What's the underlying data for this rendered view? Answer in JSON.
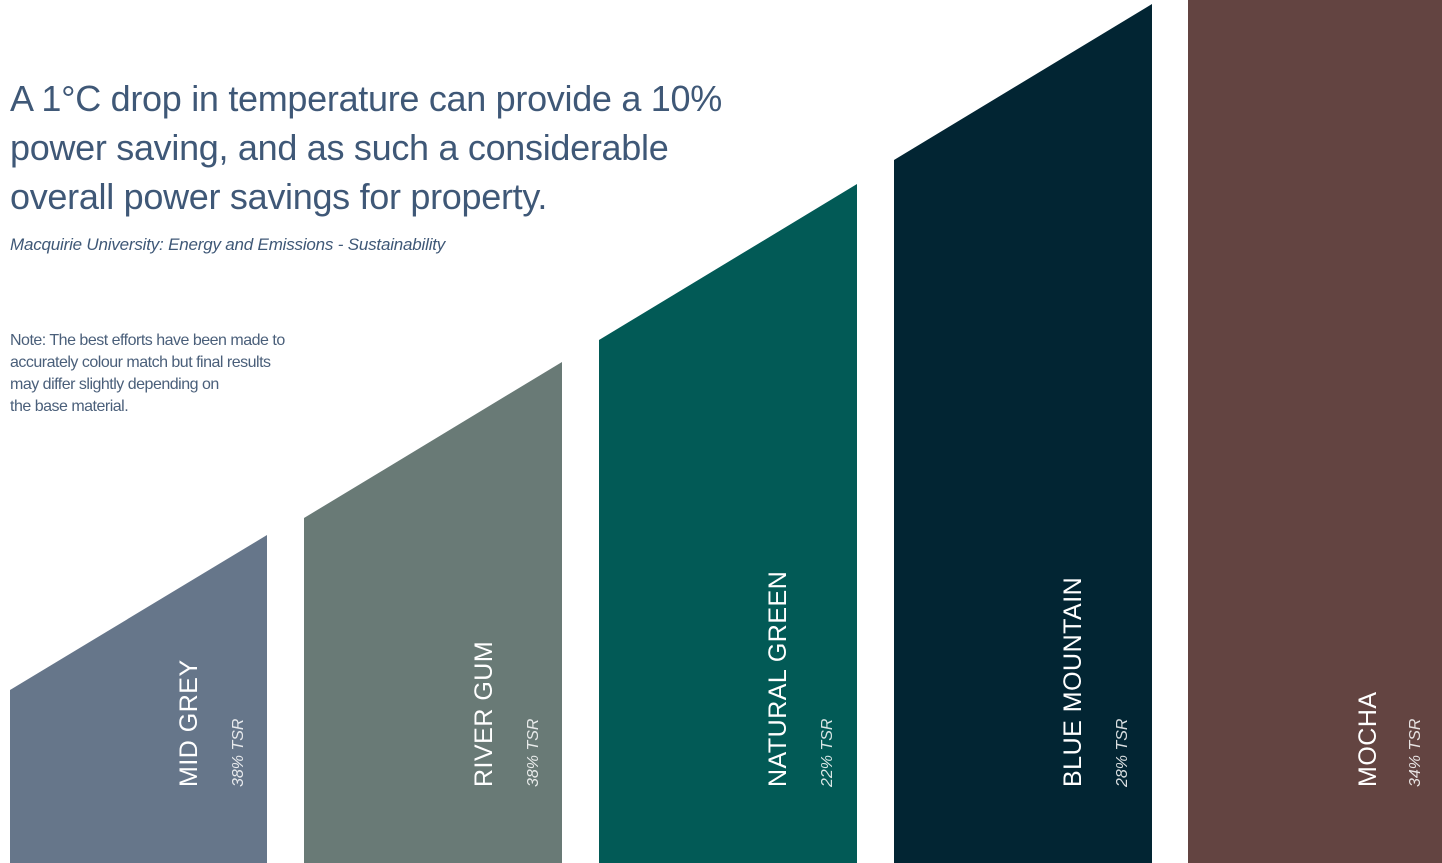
{
  "headline": "A 1°C drop in temperature can provide a 10% power saving, and as such a considerable overall power savings for property.",
  "source": "Macquirie University: Energy and Emissions - Sustainability",
  "note": {
    "lines": [
      "Note: The best efforts have been made to",
      "accurately colour match but final results",
      "may differ slightly depending on",
      "the base material."
    ]
  },
  "swatches": [
    {
      "name": "MID GREY",
      "tsr": "38% TSR",
      "color": "#66768a"
    },
    {
      "name": "RIVER GUM",
      "tsr": "38% TSR",
      "color": "#697a76"
    },
    {
      "name": "NATURAL GREEN",
      "tsr": "22% TSR",
      "color": "#025a56"
    },
    {
      "name": "BLUE MOUNTAIN",
      "tsr": "28% TSR",
      "color": "#022533"
    },
    {
      "name": "MOCHA",
      "tsr": "34% TSR",
      "color": "#634441"
    }
  ]
}
